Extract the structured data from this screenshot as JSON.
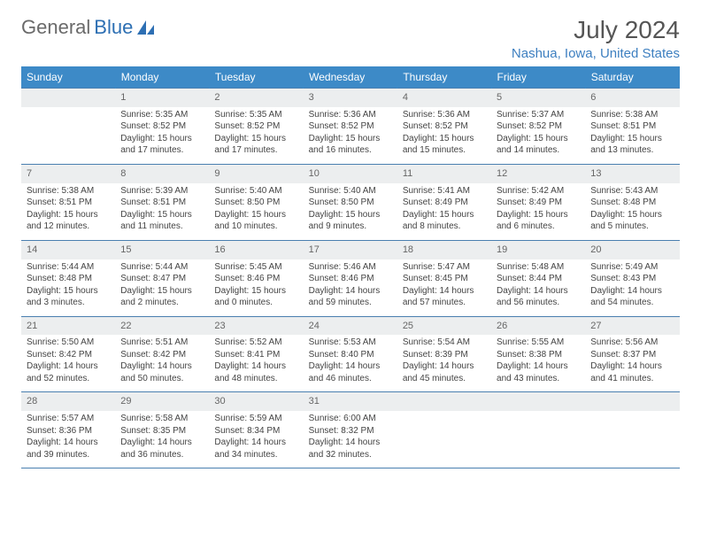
{
  "logo": {
    "part1": "General",
    "part2": "Blue"
  },
  "title": "July 2024",
  "location": "Nashua, Iowa, United States",
  "colors": {
    "header_bg": "#3d8ac7",
    "daynum_bg": "#eceeef",
    "rule": "#4a7fb0",
    "link": "#3d7fc0"
  },
  "weekdays": [
    "Sunday",
    "Monday",
    "Tuesday",
    "Wednesday",
    "Thursday",
    "Friday",
    "Saturday"
  ],
  "weeks": [
    {
      "nums": [
        "",
        "1",
        "2",
        "3",
        "4",
        "5",
        "6"
      ],
      "cells": [
        null,
        {
          "sr": "Sunrise: 5:35 AM",
          "ss": "Sunset: 8:52 PM",
          "d1": "Daylight: 15 hours",
          "d2": "and 17 minutes."
        },
        {
          "sr": "Sunrise: 5:35 AM",
          "ss": "Sunset: 8:52 PM",
          "d1": "Daylight: 15 hours",
          "d2": "and 17 minutes."
        },
        {
          "sr": "Sunrise: 5:36 AM",
          "ss": "Sunset: 8:52 PM",
          "d1": "Daylight: 15 hours",
          "d2": "and 16 minutes."
        },
        {
          "sr": "Sunrise: 5:36 AM",
          "ss": "Sunset: 8:52 PM",
          "d1": "Daylight: 15 hours",
          "d2": "and 15 minutes."
        },
        {
          "sr": "Sunrise: 5:37 AM",
          "ss": "Sunset: 8:52 PM",
          "d1": "Daylight: 15 hours",
          "d2": "and 14 minutes."
        },
        {
          "sr": "Sunrise: 5:38 AM",
          "ss": "Sunset: 8:51 PM",
          "d1": "Daylight: 15 hours",
          "d2": "and 13 minutes."
        }
      ]
    },
    {
      "nums": [
        "7",
        "8",
        "9",
        "10",
        "11",
        "12",
        "13"
      ],
      "cells": [
        {
          "sr": "Sunrise: 5:38 AM",
          "ss": "Sunset: 8:51 PM",
          "d1": "Daylight: 15 hours",
          "d2": "and 12 minutes."
        },
        {
          "sr": "Sunrise: 5:39 AM",
          "ss": "Sunset: 8:51 PM",
          "d1": "Daylight: 15 hours",
          "d2": "and 11 minutes."
        },
        {
          "sr": "Sunrise: 5:40 AM",
          "ss": "Sunset: 8:50 PM",
          "d1": "Daylight: 15 hours",
          "d2": "and 10 minutes."
        },
        {
          "sr": "Sunrise: 5:40 AM",
          "ss": "Sunset: 8:50 PM",
          "d1": "Daylight: 15 hours",
          "d2": "and 9 minutes."
        },
        {
          "sr": "Sunrise: 5:41 AM",
          "ss": "Sunset: 8:49 PM",
          "d1": "Daylight: 15 hours",
          "d2": "and 8 minutes."
        },
        {
          "sr": "Sunrise: 5:42 AM",
          "ss": "Sunset: 8:49 PM",
          "d1": "Daylight: 15 hours",
          "d2": "and 6 minutes."
        },
        {
          "sr": "Sunrise: 5:43 AM",
          "ss": "Sunset: 8:48 PM",
          "d1": "Daylight: 15 hours",
          "d2": "and 5 minutes."
        }
      ]
    },
    {
      "nums": [
        "14",
        "15",
        "16",
        "17",
        "18",
        "19",
        "20"
      ],
      "cells": [
        {
          "sr": "Sunrise: 5:44 AM",
          "ss": "Sunset: 8:48 PM",
          "d1": "Daylight: 15 hours",
          "d2": "and 3 minutes."
        },
        {
          "sr": "Sunrise: 5:44 AM",
          "ss": "Sunset: 8:47 PM",
          "d1": "Daylight: 15 hours",
          "d2": "and 2 minutes."
        },
        {
          "sr": "Sunrise: 5:45 AM",
          "ss": "Sunset: 8:46 PM",
          "d1": "Daylight: 15 hours",
          "d2": "and 0 minutes."
        },
        {
          "sr": "Sunrise: 5:46 AM",
          "ss": "Sunset: 8:46 PM",
          "d1": "Daylight: 14 hours",
          "d2": "and 59 minutes."
        },
        {
          "sr": "Sunrise: 5:47 AM",
          "ss": "Sunset: 8:45 PM",
          "d1": "Daylight: 14 hours",
          "d2": "and 57 minutes."
        },
        {
          "sr": "Sunrise: 5:48 AM",
          "ss": "Sunset: 8:44 PM",
          "d1": "Daylight: 14 hours",
          "d2": "and 56 minutes."
        },
        {
          "sr": "Sunrise: 5:49 AM",
          "ss": "Sunset: 8:43 PM",
          "d1": "Daylight: 14 hours",
          "d2": "and 54 minutes."
        }
      ]
    },
    {
      "nums": [
        "21",
        "22",
        "23",
        "24",
        "25",
        "26",
        "27"
      ],
      "cells": [
        {
          "sr": "Sunrise: 5:50 AM",
          "ss": "Sunset: 8:42 PM",
          "d1": "Daylight: 14 hours",
          "d2": "and 52 minutes."
        },
        {
          "sr": "Sunrise: 5:51 AM",
          "ss": "Sunset: 8:42 PM",
          "d1": "Daylight: 14 hours",
          "d2": "and 50 minutes."
        },
        {
          "sr": "Sunrise: 5:52 AM",
          "ss": "Sunset: 8:41 PM",
          "d1": "Daylight: 14 hours",
          "d2": "and 48 minutes."
        },
        {
          "sr": "Sunrise: 5:53 AM",
          "ss": "Sunset: 8:40 PM",
          "d1": "Daylight: 14 hours",
          "d2": "and 46 minutes."
        },
        {
          "sr": "Sunrise: 5:54 AM",
          "ss": "Sunset: 8:39 PM",
          "d1": "Daylight: 14 hours",
          "d2": "and 45 minutes."
        },
        {
          "sr": "Sunrise: 5:55 AM",
          "ss": "Sunset: 8:38 PM",
          "d1": "Daylight: 14 hours",
          "d2": "and 43 minutes."
        },
        {
          "sr": "Sunrise: 5:56 AM",
          "ss": "Sunset: 8:37 PM",
          "d1": "Daylight: 14 hours",
          "d2": "and 41 minutes."
        }
      ]
    },
    {
      "nums": [
        "28",
        "29",
        "30",
        "31",
        "",
        "",
        ""
      ],
      "cells": [
        {
          "sr": "Sunrise: 5:57 AM",
          "ss": "Sunset: 8:36 PM",
          "d1": "Daylight: 14 hours",
          "d2": "and 39 minutes."
        },
        {
          "sr": "Sunrise: 5:58 AM",
          "ss": "Sunset: 8:35 PM",
          "d1": "Daylight: 14 hours",
          "d2": "and 36 minutes."
        },
        {
          "sr": "Sunrise: 5:59 AM",
          "ss": "Sunset: 8:34 PM",
          "d1": "Daylight: 14 hours",
          "d2": "and 34 minutes."
        },
        {
          "sr": "Sunrise: 6:00 AM",
          "ss": "Sunset: 8:32 PM",
          "d1": "Daylight: 14 hours",
          "d2": "and 32 minutes."
        },
        null,
        null,
        null
      ]
    }
  ]
}
